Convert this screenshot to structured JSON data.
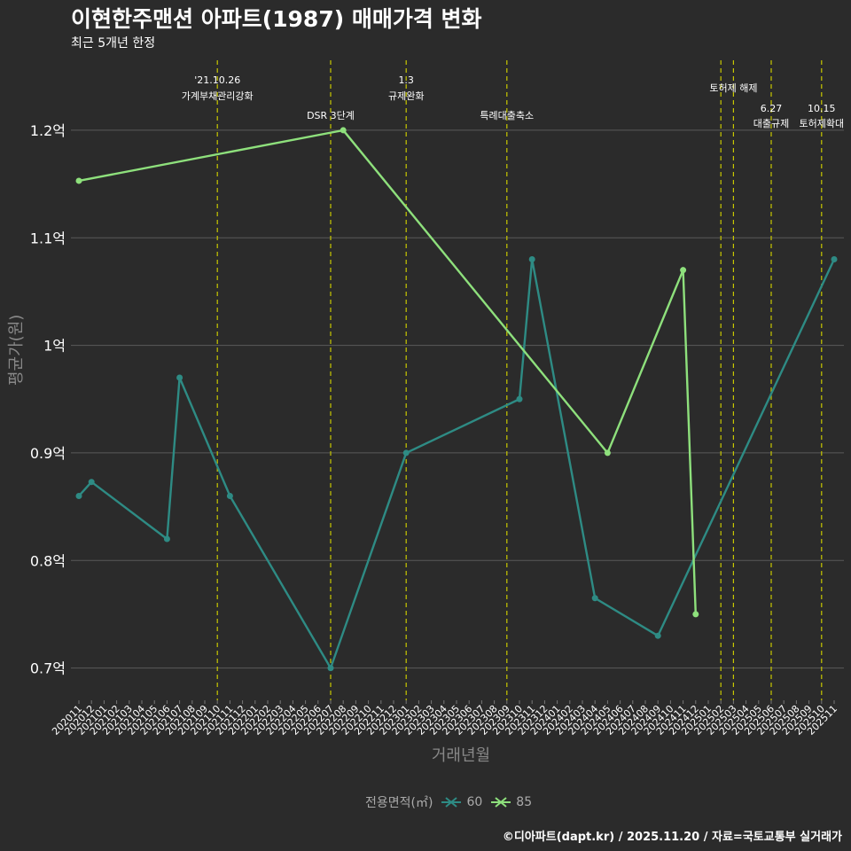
{
  "header": {
    "title": "이현한주맨션 아파트(1987) 매매가격 변화",
    "subtitle": "최근 5개년 한정"
  },
  "footer": {
    "caption": "©디아파트(dapt.kr) / 2025.11.20 / 자료=국토교통부 실거래가"
  },
  "colors": {
    "background": "#2b2b2b",
    "grid": "#5a5a5a",
    "vline": "#c8c800",
    "series_60": "#2e8b84",
    "series_85": "#8ee07c"
  },
  "chart_data": {
    "type": "line",
    "title": "이현한주맨션 아파트(1987) 매매가격 변화",
    "subtitle": "최근 5개년 한정",
    "xlabel": "거래년월",
    "ylabel": "평균가(원)",
    "ylim": [
      0.67,
      1.27
    ],
    "yticks": [
      0.7,
      0.8,
      0.9,
      1.0,
      1.1,
      1.2
    ],
    "ytick_labels": [
      "0.7억",
      "0.8억",
      "0.9억",
      "1억",
      "1.1억",
      "1.2억"
    ],
    "categories": [
      "202011",
      "202012",
      "202101",
      "202102",
      "202103",
      "202104",
      "202105",
      "202106",
      "202107",
      "202108",
      "202109",
      "202110",
      "202111",
      "202112",
      "202201",
      "202202",
      "202203",
      "202204",
      "202205",
      "202206",
      "202207",
      "202208",
      "202209",
      "202210",
      "202211",
      "202212",
      "202301",
      "202302",
      "202303",
      "202304",
      "202305",
      "202306",
      "202307",
      "202308",
      "202309",
      "202310",
      "202311",
      "202312",
      "202401",
      "202402",
      "202403",
      "202404",
      "202405",
      "202406",
      "202407",
      "202408",
      "202409",
      "202410",
      "202411",
      "202412",
      "202501",
      "202502",
      "202503",
      "202504",
      "202505",
      "202506",
      "202507",
      "202508",
      "202509",
      "202510",
      "202511"
    ],
    "legend_title": "전용면적(㎡)",
    "series": [
      {
        "name": "60",
        "points": [
          {
            "x": "202011",
            "y": 0.86
          },
          {
            "x": "202012",
            "y": 0.873
          },
          {
            "x": "202106",
            "y": 0.82
          },
          {
            "x": "202107",
            "y": 0.97
          },
          {
            "x": "202111",
            "y": 0.86
          },
          {
            "x": "202207",
            "y": 0.7
          },
          {
            "x": "202301",
            "y": 0.9
          },
          {
            "x": "202310",
            "y": 0.95
          },
          {
            "x": "202311",
            "y": 1.08
          },
          {
            "x": "202404",
            "y": 0.765
          },
          {
            "x": "202409",
            "y": 0.73
          },
          {
            "x": "202511",
            "y": 1.08
          }
        ]
      },
      {
        "name": "85",
        "points": [
          {
            "x": "202011",
            "y": 1.153
          },
          {
            "x": "202208",
            "y": 1.2
          },
          {
            "x": "202405",
            "y": 0.9
          },
          {
            "x": "202411",
            "y": 1.07
          },
          {
            "x": "202412",
            "y": 0.75
          }
        ]
      }
    ],
    "annotations": [
      {
        "x": "202110",
        "lines": [
          "'21.10.26",
          "가계부채관리강화"
        ],
        "level": 1
      },
      {
        "x": "202207",
        "lines": [
          "DSR 3단계"
        ],
        "level": 3
      },
      {
        "x": "202301",
        "lines": [
          "1.3",
          "규제완화"
        ],
        "level": 1
      },
      {
        "x": "202309",
        "lines": [
          "특례대출축소"
        ],
        "level": 3
      },
      {
        "x": "202502",
        "lines": [],
        "level": 0
      },
      {
        "x": "202503",
        "lines": [
          "토허제 해제"
        ],
        "level": 2
      },
      {
        "x": "202506",
        "lines": [
          "6.27",
          "대출규제"
        ],
        "level": 4
      },
      {
        "x": "202510",
        "lines": [
          "10.15",
          "토허제확대"
        ],
        "level": 4
      }
    ]
  }
}
